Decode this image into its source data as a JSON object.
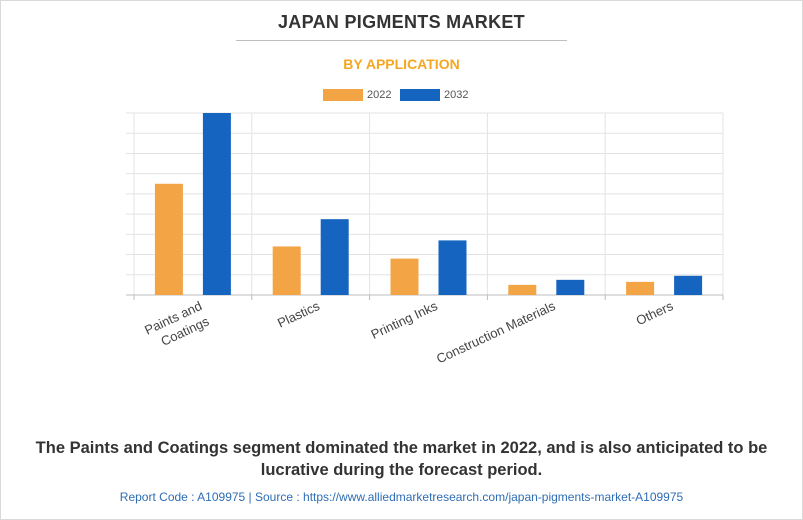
{
  "header": {
    "title": "JAPAN PIGMENTS MARKET",
    "subtitle": "BY APPLICATION"
  },
  "colors": {
    "series_2022": "#f3a445",
    "series_2032": "#1565c0",
    "subtitle": "#f5a623",
    "source": "#2e6db4"
  },
  "chart_data": {
    "type": "bar",
    "title": "JAPAN PIGMENTS MARKET",
    "subtitle": "BY APPLICATION",
    "categories": [
      [
        "Paints and",
        "Coatings"
      ],
      [
        "Plastics"
      ],
      [
        "Printing Inks"
      ],
      [
        "Construction Materials"
      ],
      [
        "Others"
      ]
    ],
    "series": [
      {
        "name": "2022",
        "values": [
          55,
          24,
          18,
          5,
          6.5
        ]
      },
      {
        "name": "2032",
        "values": [
          90,
          37.5,
          27,
          7.5,
          9.5
        ]
      }
    ],
    "xlabel": "",
    "ylabel": "",
    "ylim": [
      0,
      90
    ],
    "grid": true,
    "legend": "top-center"
  },
  "footer": {
    "caption": "The Paints and Coatings segment dominated the market in 2022, and is also anticipated to be lucrative during the forecast period.",
    "source": "Report Code : A109975  |  Source : https://www.alliedmarketresearch.com/japan-pigments-market-A109975"
  }
}
